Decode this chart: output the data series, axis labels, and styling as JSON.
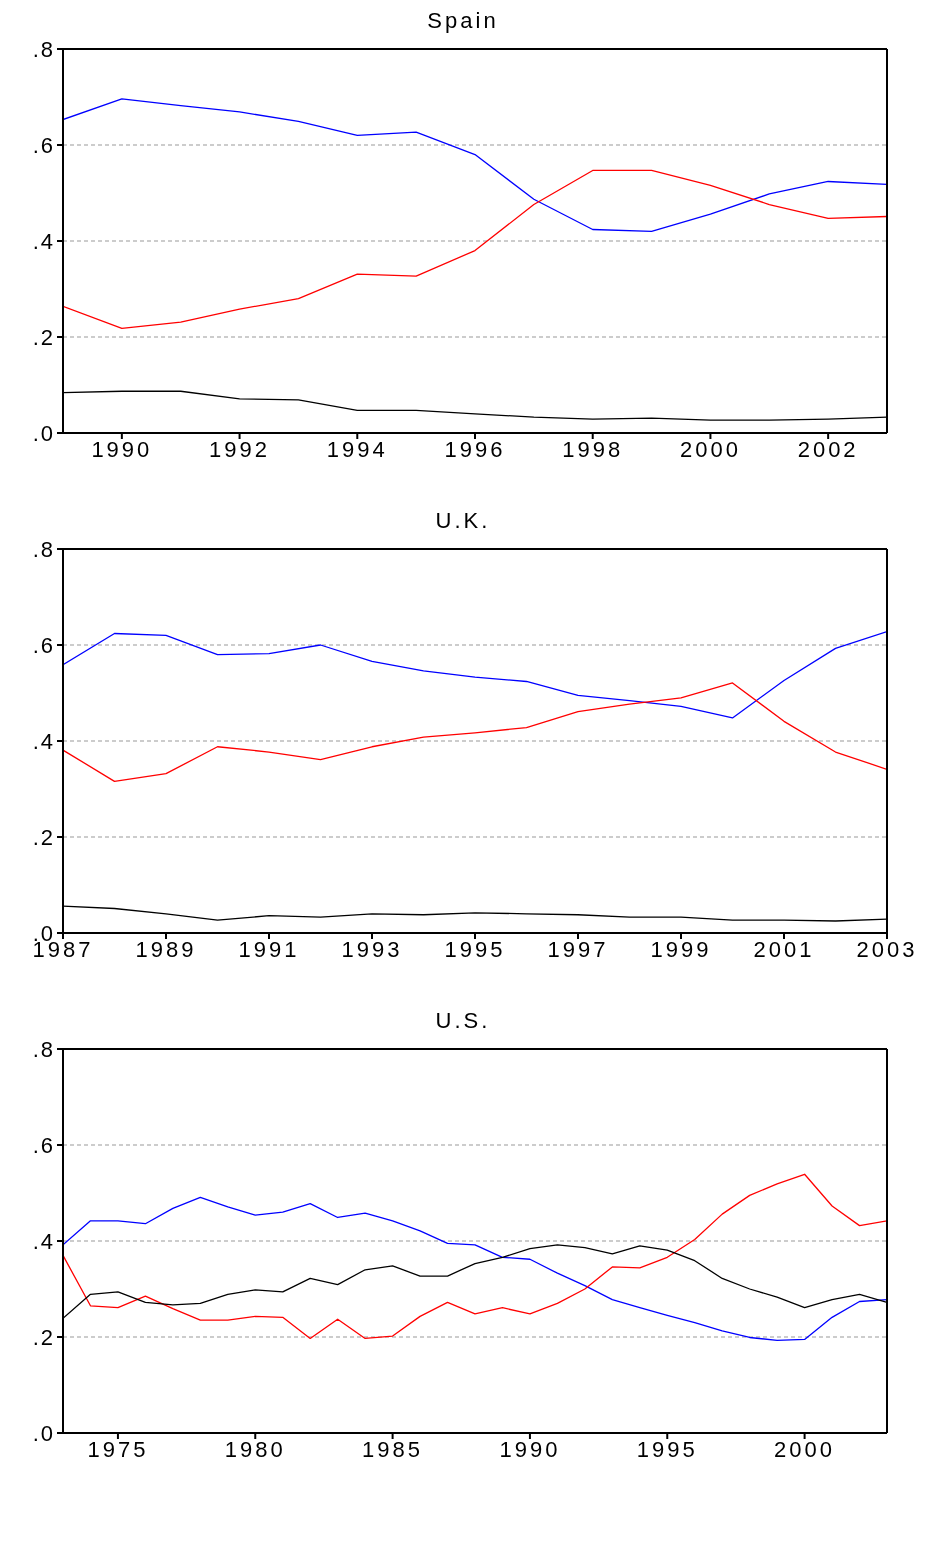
{
  "chart_data": [
    {
      "type": "line",
      "title": "Spain",
      "x": [
        1989,
        1990,
        1991,
        1992,
        1993,
        1994,
        1995,
        1996,
        1997,
        1998,
        1999,
        2000,
        2001,
        2002,
        2003
      ],
      "xlim": [
        1989,
        2003
      ],
      "xticks": [
        1990,
        1992,
        1994,
        1996,
        1998,
        2000,
        2002
      ],
      "ylim": [
        0,
        0.8
      ],
      "yticks": [
        {
          "value": 0,
          "label": ".0"
        },
        {
          "value": 0.2,
          "label": ".2"
        },
        {
          "value": 0.4,
          "label": ".4"
        },
        {
          "value": 0.6,
          "label": ".6"
        },
        {
          "value": 0.8,
          "label": ".8"
        }
      ],
      "grid": "y",
      "legend": false,
      "marker": "none",
      "line_style": "solid",
      "series": [
        {
          "color": "#0000ff",
          "values": [
            0.653,
            0.696,
            0.682,
            0.669,
            0.649,
            0.62,
            0.627,
            0.58,
            0.487,
            0.424,
            0.42,
            0.456,
            0.498,
            0.524,
            0.518
          ]
        },
        {
          "color": "#ff0000",
          "values": [
            0.264,
            0.218,
            0.231,
            0.258,
            0.28,
            0.331,
            0.327,
            0.38,
            0.476,
            0.547,
            0.547,
            0.516,
            0.476,
            0.447,
            0.451
          ]
        },
        {
          "color": "#000000",
          "values": [
            0.084,
            0.087,
            0.087,
            0.071,
            0.069,
            0.047,
            0.047,
            0.04,
            0.033,
            0.029,
            0.031,
            0.027,
            0.027,
            0.029,
            0.033
          ]
        }
      ]
    },
    {
      "type": "line",
      "title": "U.K.",
      "x": [
        1987,
        1988,
        1989,
        1990,
        1991,
        1992,
        1993,
        1994,
        1995,
        1996,
        1997,
        1998,
        1999,
        2000,
        2001,
        2002,
        2003
      ],
      "xlim": [
        1987,
        2003
      ],
      "xticks": [
        1987,
        1989,
        1991,
        1993,
        1995,
        1997,
        1999,
        2001,
        2003
      ],
      "ylim": [
        0,
        0.8
      ],
      "yticks": [
        {
          "value": 0,
          "label": ".0"
        },
        {
          "value": 0.2,
          "label": ".2"
        },
        {
          "value": 0.4,
          "label": ".4"
        },
        {
          "value": 0.6,
          "label": ".6"
        },
        {
          "value": 0.8,
          "label": ".8"
        }
      ],
      "grid": "y",
      "legend": false,
      "marker": "none",
      "line_style": "solid",
      "series": [
        {
          "color": "#0000ff",
          "values": [
            0.559,
            0.624,
            0.62,
            0.58,
            0.582,
            0.6,
            0.566,
            0.546,
            0.533,
            0.524,
            0.495,
            0.484,
            0.472,
            0.448,
            0.526,
            0.593,
            0.628
          ]
        },
        {
          "color": "#ff0000",
          "values": [
            0.381,
            0.316,
            0.332,
            0.388,
            0.377,
            0.361,
            0.388,
            0.408,
            0.417,
            0.428,
            0.461,
            0.477,
            0.49,
            0.521,
            0.441,
            0.377,
            0.341
          ]
        },
        {
          "color": "#000000",
          "values": [
            0.056,
            0.051,
            0.04,
            0.027,
            0.036,
            0.033,
            0.04,
            0.038,
            0.042,
            0.04,
            0.038,
            0.033,
            0.033,
            0.027,
            0.027,
            0.025,
            0.029
          ]
        }
      ]
    },
    {
      "type": "line",
      "title": "U.S.",
      "x": [
        1973,
        1974,
        1975,
        1976,
        1977,
        1978,
        1979,
        1980,
        1981,
        1982,
        1983,
        1984,
        1985,
        1986,
        1987,
        1988,
        1989,
        1990,
        1991,
        1992,
        1993,
        1994,
        1995,
        1996,
        1997,
        1998,
        1999,
        2000,
        2001,
        2002,
        2003
      ],
      "xlim": [
        1973,
        2003
      ],
      "xticks": [
        1975,
        1980,
        1985,
        1990,
        1995,
        2000
      ],
      "ylim": [
        0,
        0.8
      ],
      "yticks": [
        {
          "value": 0,
          "label": ".0"
        },
        {
          "value": 0.2,
          "label": ".2"
        },
        {
          "value": 0.4,
          "label": ".4"
        },
        {
          "value": 0.6,
          "label": ".6"
        },
        {
          "value": 0.8,
          "label": ".8"
        }
      ],
      "grid": "y",
      "legend": false,
      "marker": "none",
      "line_style": "solid",
      "series": [
        {
          "color": "#0000ff",
          "values": [
            0.392,
            0.442,
            0.442,
            0.436,
            0.468,
            0.491,
            0.471,
            0.454,
            0.46,
            0.478,
            0.449,
            0.458,
            0.442,
            0.421,
            0.395,
            0.392,
            0.366,
            0.362,
            0.333,
            0.307,
            0.278,
            0.261,
            0.245,
            0.23,
            0.213,
            0.199,
            0.193,
            0.195,
            0.241,
            0.274,
            0.278
          ]
        },
        {
          "color": "#ff0000",
          "values": [
            0.37,
            0.265,
            0.261,
            0.285,
            0.259,
            0.235,
            0.235,
            0.243,
            0.241,
            0.197,
            0.237,
            0.197,
            0.202,
            0.243,
            0.272,
            0.248,
            0.261,
            0.248,
            0.27,
            0.3,
            0.346,
            0.344,
            0.366,
            0.403,
            0.456,
            0.495,
            0.519,
            0.539,
            0.473,
            0.432,
            0.442
          ]
        },
        {
          "color": "#000000",
          "values": [
            0.239,
            0.289,
            0.294,
            0.272,
            0.267,
            0.27,
            0.289,
            0.298,
            0.294,
            0.322,
            0.309,
            0.34,
            0.348,
            0.327,
            0.327,
            0.353,
            0.366,
            0.384,
            0.392,
            0.386,
            0.373,
            0.39,
            0.381,
            0.359,
            0.322,
            0.3,
            0.283,
            0.261,
            0.278,
            0.289,
            0.272
          ]
        }
      ]
    }
  ]
}
